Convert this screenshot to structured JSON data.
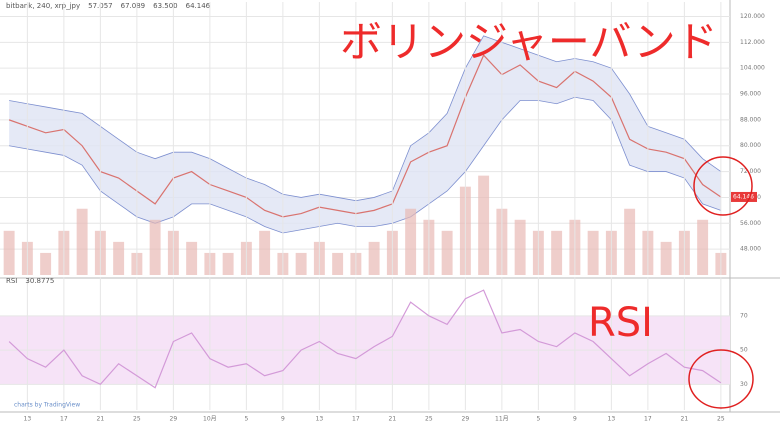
{
  "chart_data": [
    {
      "type": "line",
      "header": [
        "bitbank, 240, xrp_jpy",
        "57.057",
        "67.089",
        "63.500",
        "64.146"
      ],
      "title": "ボリンジャーバンド",
      "x": [
        0,
        1,
        2,
        3,
        4,
        5,
        6,
        7,
        8,
        9,
        10,
        11,
        12,
        13,
        14,
        15,
        16,
        17,
        18,
        19,
        20,
        21,
        22,
        23,
        24,
        25,
        26,
        27,
        28,
        29,
        30,
        31,
        32,
        33,
        34,
        35,
        36,
        37,
        38,
        39
      ],
      "xlim": [
        -0.5,
        39.5
      ],
      "series": [
        {
          "name": "close",
          "color": "#d9736f",
          "values": [
            88,
            86,
            84,
            85,
            80,
            72,
            70,
            66,
            62,
            70,
            72,
            68,
            66,
            64,
            60,
            58,
            59,
            61,
            60,
            59,
            60,
            62,
            75,
            78,
            80,
            95,
            108,
            102,
            105,
            100,
            98,
            103,
            100,
            95,
            82,
            79,
            78,
            76,
            68,
            64.146
          ]
        },
        {
          "name": "upper",
          "color": "#7d8fcf",
          "values": [
            94,
            93,
            92,
            91,
            90,
            86,
            82,
            78,
            76,
            78,
            78,
            76,
            73,
            70,
            68,
            65,
            64,
            65,
            64,
            63,
            64,
            66,
            80,
            84,
            90,
            104,
            114,
            112,
            110,
            108,
            106,
            107,
            106,
            104,
            96,
            86,
            84,
            82,
            76,
            72
          ]
        },
        {
          "name": "lower",
          "color": "#7d8fcf",
          "values": [
            80,
            79,
            78,
            77,
            74,
            66,
            62,
            58,
            56,
            58,
            62,
            62,
            60,
            58,
            55,
            53,
            54,
            55,
            56,
            55,
            55,
            56,
            58,
            62,
            66,
            72,
            80,
            88,
            94,
            94,
            93,
            95,
            94,
            88,
            74,
            72,
            72,
            70,
            62,
            60
          ]
        },
        {
          "name": "volume",
          "color": "#e8b9b5",
          "axis": "y2",
          "values": [
            2,
            1.5,
            1,
            2,
            3,
            2,
            1.5,
            1,
            2.5,
            2,
            1.5,
            1,
            1,
            1.5,
            2,
            1,
            1,
            1.5,
            1,
            1,
            1.5,
            2,
            3,
            2.5,
            2,
            4,
            4.5,
            3,
            2.5,
            2,
            2,
            2.5,
            2,
            2,
            3,
            2,
            1.5,
            2,
            2.5,
            1
          ]
        }
      ],
      "band_color": "#dfe3f4",
      "ylim": [
        40,
        122
      ],
      "yticks": [
        {
          "value": 48,
          "label": "48.000"
        },
        {
          "value": 56,
          "label": "56.000"
        },
        {
          "value": 64,
          "label": "64.000"
        },
        {
          "value": 72,
          "label": "72.000"
        },
        {
          "value": 80,
          "label": "80.000"
        },
        {
          "value": 88,
          "label": "88.000"
        },
        {
          "value": 96,
          "label": "96.000"
        },
        {
          "value": 104,
          "label": "104.000"
        },
        {
          "value": 112,
          "label": "112.000"
        },
        {
          "value": 120,
          "label": "120.000"
        }
      ],
      "y2lim": [
        0,
        12
      ],
      "grid": true
    },
    {
      "type": "line",
      "header": [
        "RSI",
        "30.8775"
      ],
      "title": "RSI",
      "x": [
        0,
        1,
        2,
        3,
        4,
        5,
        6,
        7,
        8,
        9,
        10,
        11,
        12,
        13,
        14,
        15,
        16,
        17,
        18,
        19,
        20,
        21,
        22,
        23,
        24,
        25,
        26,
        27,
        28,
        29,
        30,
        31,
        32,
        33,
        34,
        35,
        36,
        37,
        38,
        39
      ],
      "xlim": [
        -0.5,
        39.5
      ],
      "series": [
        {
          "name": "RSI",
          "color": "#d39ad8",
          "values": [
            55,
            45,
            40,
            50,
            35,
            30,
            42,
            35,
            28,
            55,
            60,
            45,
            40,
            42,
            35,
            38,
            50,
            55,
            48,
            45,
            52,
            58,
            78,
            70,
            65,
            80,
            85,
            60,
            62,
            55,
            52,
            60,
            55,
            45,
            35,
            42,
            48,
            40,
            38,
            30.8775
          ]
        }
      ],
      "band": [
        30,
        70
      ],
      "band_color": "#f6e3f7",
      "ylim": [
        15,
        88
      ],
      "yticks": [
        30,
        50,
        70
      ],
      "xticks": [
        {
          "value": 1,
          "label": "13"
        },
        {
          "value": 3,
          "label": "17"
        },
        {
          "value": 5,
          "label": "21"
        },
        {
          "value": 7,
          "label": "25"
        },
        {
          "value": 9,
          "label": "29"
        },
        {
          "value": 11,
          "label": "10月"
        },
        {
          "value": 13,
          "label": "5"
        },
        {
          "value": 15,
          "label": "9"
        },
        {
          "value": 17,
          "label": "13"
        },
        {
          "value": 19,
          "label": "17"
        },
        {
          "value": 21,
          "label": "21"
        },
        {
          "value": 23,
          "label": "25"
        },
        {
          "value": 25,
          "label": "29"
        },
        {
          "value": 27,
          "label": "11月"
        },
        {
          "value": 29,
          "label": "5"
        },
        {
          "value": 31,
          "label": "9"
        },
        {
          "value": 33,
          "label": "13"
        },
        {
          "value": 35,
          "label": "17"
        },
        {
          "value": 37,
          "label": "21"
        },
        {
          "value": 39,
          "label": "25"
        }
      ],
      "grid": true,
      "watermark": "charts by TradingView"
    }
  ]
}
